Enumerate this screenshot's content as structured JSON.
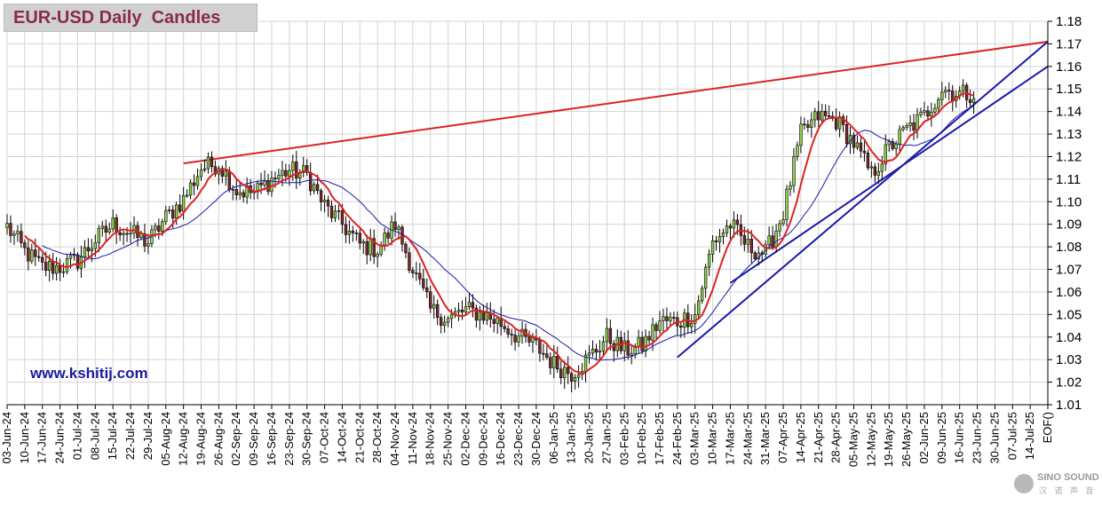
{
  "chart_data": {
    "type": "candlestick",
    "title": "EUR-USD Daily  Candles",
    "ylim": [
      1.01,
      1.18
    ],
    "yticks": [
      "1.18",
      "1.17",
      "1.16",
      "1.15",
      "1.14",
      "1.13",
      "1.12",
      "1.11",
      "1.10",
      "1.09",
      "1.08",
      "1.07",
      "1.06",
      "1.05",
      "1.04",
      "1.03",
      "1.02",
      "1.01"
    ],
    "xticks": [
      "03-Jun-24",
      "10-Jun-24",
      "17-Jun-24",
      "24-Jun-24",
      "01-Jul-24",
      "08-Jul-24",
      "15-Jul-24",
      "22-Jul-24",
      "29-Jul-24",
      "05-Aug-24",
      "12-Aug-24",
      "19-Aug-24",
      "26-Aug-24",
      "02-Sep-24",
      "09-Sep-24",
      "16-Sep-24",
      "23-Sep-24",
      "30-Sep-24",
      "07-Oct-24",
      "14-Oct-24",
      "21-Oct-24",
      "28-Oct-24",
      "04-Nov-24",
      "11-Nov-24",
      "18-Nov-24",
      "25-Nov-24",
      "02-Dec-24",
      "09-Dec-24",
      "16-Dec-24",
      "23-Dec-24",
      "30-Dec-24",
      "06-Jan-25",
      "13-Jan-25",
      "20-Jan-25",
      "27-Jan-25",
      "03-Feb-25",
      "10-Feb-25",
      "17-Feb-25",
      "24-Feb-25",
      "03-Mar-25",
      "10-Mar-25",
      "17-Mar-25",
      "24-Mar-25",
      "31-Mar-25",
      "07-Apr-25",
      "14-Apr-25",
      "21-Apr-25",
      "28-Apr-25",
      "05-May-25",
      "12-May-25",
      "19-May-25",
      "26-May-25",
      "02-Jun-25",
      "09-Jun-25",
      "16-Jun-25",
      "23-Jun-25",
      "30-Jun-25",
      "07-Jul-25",
      "14-Jul-25",
      "EOF()"
    ],
    "x_index_of_last_data_tick": 54,
    "weekly_anchors": [
      1.089,
      1.078,
      1.071,
      1.071,
      1.074,
      1.083,
      1.09,
      1.086,
      1.082,
      1.093,
      1.101,
      1.115,
      1.117,
      1.105,
      1.104,
      1.11,
      1.114,
      1.112,
      1.098,
      1.09,
      1.081,
      1.079,
      1.09,
      1.07,
      1.052,
      1.048,
      1.052,
      1.05,
      1.046,
      1.04,
      1.036,
      1.028,
      1.024,
      1.031,
      1.04,
      1.034,
      1.036,
      1.047,
      1.047,
      1.05,
      1.082,
      1.09,
      1.08,
      1.077,
      1.095,
      1.13,
      1.138,
      1.136,
      1.126,
      1.112,
      1.124,
      1.132,
      1.138,
      1.15,
      1.148
    ],
    "colors": {
      "bull_body": "#8ed04a",
      "bear_body": "#7a2a2a",
      "wick": "#000000",
      "fast_ma": "#dd2222",
      "slow_ma": "#1a1aa8",
      "red_trendline": "#dd2222",
      "blue_trendline": "#1a1aa8",
      "grid": "#d4d4d4"
    },
    "trendlines": [
      {
        "color": "red",
        "from": {
          "x": "12-Aug-24",
          "y": 1.117
        },
        "to": {
          "x": "EOF()",
          "y": 1.171
        }
      },
      {
        "color": "blue",
        "from": {
          "x": "24-Feb-25",
          "y": 1.031
        },
        "to": {
          "x": "EOF()",
          "y": 1.171
        }
      },
      {
        "color": "blue",
        "from": {
          "x": "17-Mar-25",
          "y": 1.064
        },
        "to": {
          "x": "EOF()",
          "y": 1.16
        }
      }
    ],
    "grid": true
  },
  "watermark": "www.kshitij.com",
  "logo": {
    "text": "SINO SOUND",
    "sub": "汉 诺 声 音"
  }
}
